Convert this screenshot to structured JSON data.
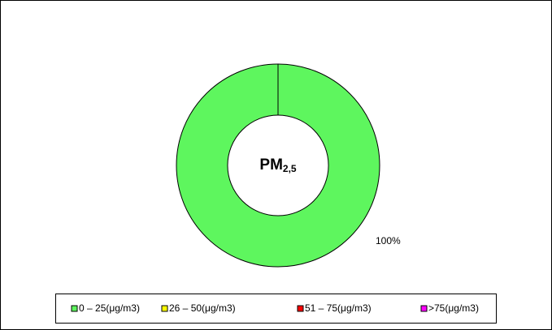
{
  "chart_data": {
    "type": "donut",
    "center_label": {
      "text": "PM",
      "subscript": "2,5"
    },
    "categories": [
      "0 – 25(μg/m3)",
      "26 – 50(μg/m3)",
      "51 – 75(μg/m3)",
      ">75(μg/m3)"
    ],
    "values": [
      100,
      0,
      0,
      0
    ],
    "value_labels": [
      "100%",
      null,
      null,
      null
    ],
    "colors": [
      "#5ef65e",
      "#ffff00",
      "#ff0000",
      "#ff00ff"
    ],
    "legend": "bottom"
  }
}
